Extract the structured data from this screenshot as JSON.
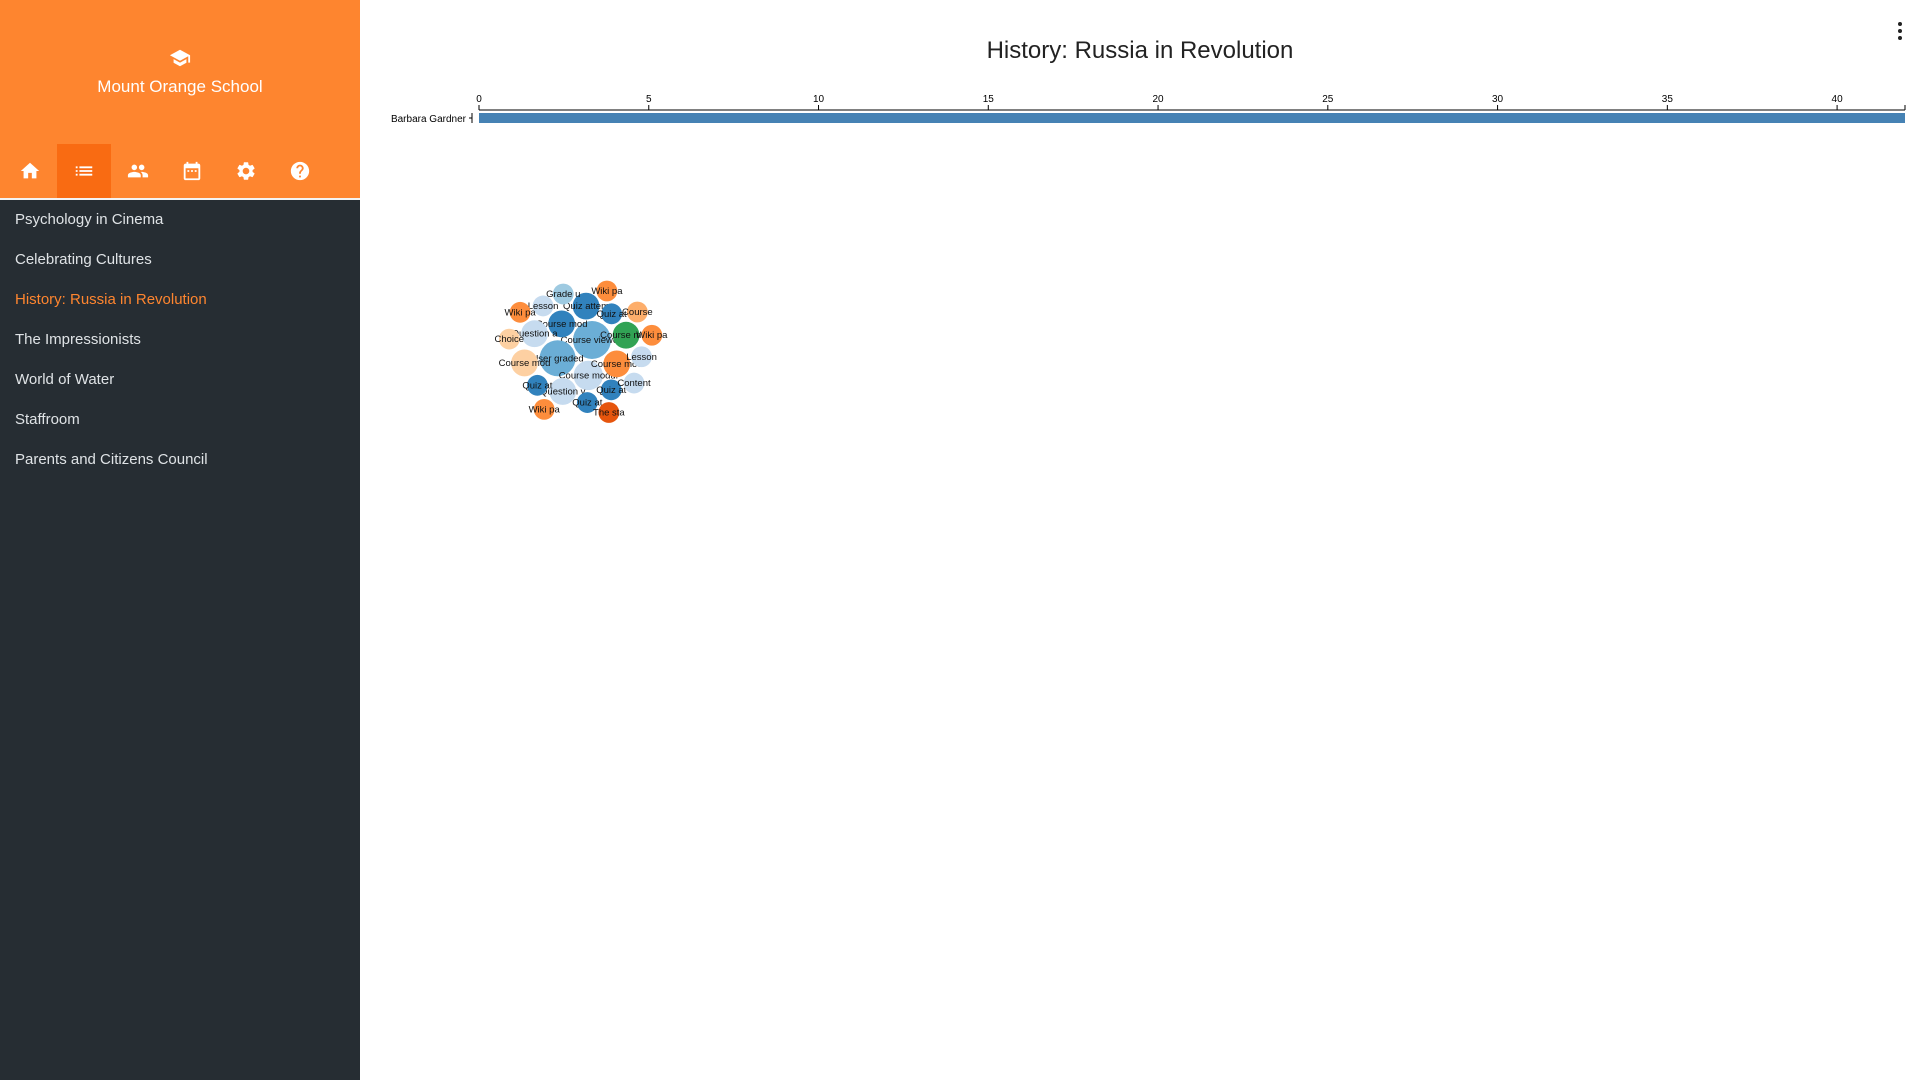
{
  "sidebar": {
    "brand_name": "Mount Orange School",
    "toolbar": [
      {
        "icon": "home-icon",
        "active": false
      },
      {
        "icon": "list-icon",
        "active": true
      },
      {
        "icon": "people-icon",
        "active": false
      },
      {
        "icon": "calendar-icon",
        "active": false
      },
      {
        "icon": "gear-icon",
        "active": false
      },
      {
        "icon": "help-icon",
        "active": false
      }
    ],
    "courses": [
      {
        "label": "Psychology in Cinema",
        "active": false
      },
      {
        "label": "Celebrating Cultures",
        "active": false
      },
      {
        "label": "History: Russia in Revolution",
        "active": true
      },
      {
        "label": "The Impressionists",
        "active": false
      },
      {
        "label": "World of Water",
        "active": false
      },
      {
        "label": "Staffroom",
        "active": false
      },
      {
        "label": "Parents and Citizens Council",
        "active": false
      }
    ]
  },
  "main": {
    "title": "History: Russia in Revolution"
  },
  "colors": {
    "brand": "#fe852f",
    "sidebar_bg": "#262d33",
    "bar": "#4682b4"
  },
  "chart_data": [
    {
      "type": "bar",
      "orientation": "horizontal",
      "categories": [
        "Barbara Gardner"
      ],
      "values": [
        42
      ],
      "xlim": [
        0,
        42
      ],
      "xticks": [
        0,
        5,
        10,
        15,
        20,
        25,
        30,
        35,
        40
      ],
      "axis_position": "top",
      "grid": false
    },
    {
      "type": "bubble",
      "bubbles": [
        {
          "label": "Course viewed",
          "value": 10,
          "color": "#6baed6"
        },
        {
          "label": "User graded",
          "value": 9,
          "color": "#6baed6"
        },
        {
          "label": "Course modul",
          "value": 6,
          "color": "#c6dbef"
        },
        {
          "label": "Course mod",
          "value": 5,
          "color": "#3182bd"
        },
        {
          "label": "Course mod",
          "value": 5,
          "color": "#fd8d3c"
        },
        {
          "label": "Course mod",
          "value": 5,
          "color": "#31a354"
        },
        {
          "label": "Question a",
          "value": 5,
          "color": "#c6dbef"
        },
        {
          "label": "Question v",
          "value": 5,
          "color": "#c6dbef"
        },
        {
          "label": "Quiz attem",
          "value": 5,
          "color": "#3182bd"
        },
        {
          "label": "Course mod",
          "value": 5,
          "color": "#fdd0a2"
        },
        {
          "label": "Quiz at",
          "value": 3,
          "color": "#3182bd"
        },
        {
          "label": "Quiz at",
          "value": 3,
          "color": "#3182bd"
        },
        {
          "label": "Quiz at",
          "value": 3,
          "color": "#3182bd"
        },
        {
          "label": "Quiz at",
          "value": 3,
          "color": "#3182bd"
        },
        {
          "label": "Lesson",
          "value": 3,
          "color": "#c6dbef"
        },
        {
          "label": "Lesson",
          "value": 3,
          "color": "#c6dbef"
        },
        {
          "label": "Content",
          "value": 3,
          "color": "#c6dbef"
        },
        {
          "label": "Grade u",
          "value": 3,
          "color": "#9ecae1"
        },
        {
          "label": "Choice",
          "value": 3,
          "color": "#fdd0a2"
        },
        {
          "label": "Course",
          "value": 3,
          "color": "#fdae6b"
        },
        {
          "label": "Wiki pa",
          "value": 3,
          "color": "#fd8d3c"
        },
        {
          "label": "Wiki pa",
          "value": 3,
          "color": "#fd8d3c"
        },
        {
          "label": "Wiki pa",
          "value": 3,
          "color": "#fd8d3c"
        },
        {
          "label": "Wiki pa",
          "value": 3,
          "color": "#fd8d3c"
        },
        {
          "label": "The sta",
          "value": 3,
          "color": "#e6550d"
        }
      ]
    }
  ]
}
